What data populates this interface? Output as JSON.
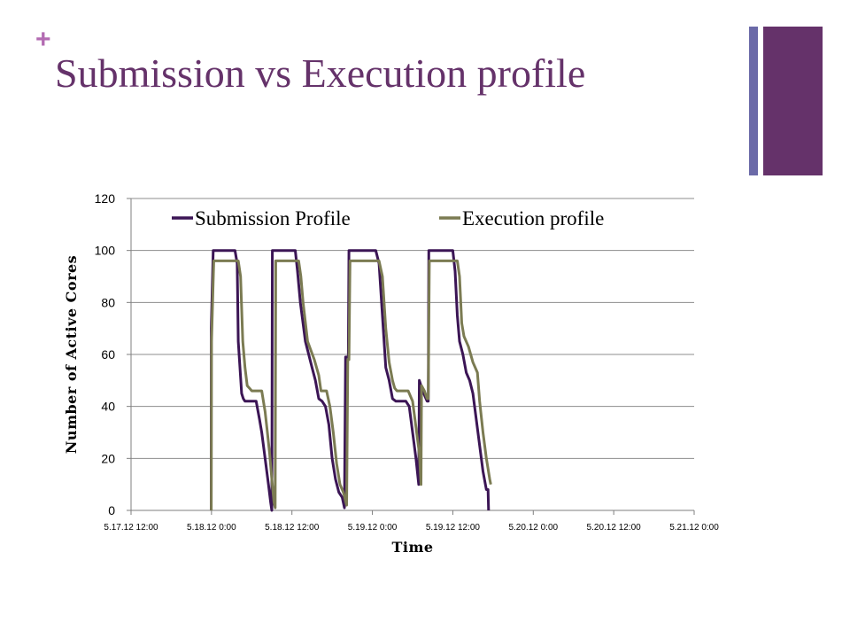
{
  "slide": {
    "bullet": "+",
    "title": "Submission vs Execution profile"
  },
  "colors": {
    "accent_purple": "#65326a",
    "accent_blue": "#6b6aa8",
    "plus": "#b36bb2"
  },
  "chart_data": {
    "type": "line",
    "xlabel": "Time",
    "ylabel": "Number of Active Cores",
    "ylim": [
      0,
      120
    ],
    "yticks": [
      "0",
      "20",
      "40",
      "60",
      "80",
      "100",
      "120"
    ],
    "xlim": [
      "2012-05-17T12:00",
      "2012-05-21T00:00"
    ],
    "xticks": [
      "5.17.12 12:00",
      "5.18.12 0:00",
      "5.18.12 12:00",
      "5.19.12 0:00",
      "5.19.12 12:00",
      "5.20.12 0:00",
      "5.20.12 12:00",
      "5.21.12 0:00"
    ],
    "grid": "horizontal",
    "legend_position": "top",
    "series": [
      {
        "name": "Submission Profile",
        "color": "#3b1555",
        "points": [
          [
            "2012-05-17T23:57",
            0
          ],
          [
            "2012-05-17T23:58",
            70
          ],
          [
            "2012-05-18T00:15",
            100
          ],
          [
            "2012-05-18T03:30",
            100
          ],
          [
            "2012-05-18T03:50",
            95
          ],
          [
            "2012-05-18T04:00",
            65
          ],
          [
            "2012-05-18T04:15",
            55
          ],
          [
            "2012-05-18T04:30",
            45
          ],
          [
            "2012-05-18T04:45",
            43
          ],
          [
            "2012-05-18T05:00",
            42
          ],
          [
            "2012-05-18T06:40",
            42
          ],
          [
            "2012-05-18T07:10",
            35
          ],
          [
            "2012-05-18T07:30",
            30
          ],
          [
            "2012-05-18T08:00",
            20
          ],
          [
            "2012-05-18T08:30",
            10
          ],
          [
            "2012-05-18T08:50",
            3
          ],
          [
            "2012-05-18T09:00",
            0
          ],
          [
            "2012-05-18T09:05",
            100
          ],
          [
            "2012-05-18T12:30",
            100
          ],
          [
            "2012-05-18T12:50",
            92
          ],
          [
            "2012-05-18T13:15",
            80
          ],
          [
            "2012-05-18T14:00",
            65
          ],
          [
            "2012-05-18T15:00",
            55
          ],
          [
            "2012-05-18T15:30",
            50
          ],
          [
            "2012-05-18T16:00",
            43
          ],
          [
            "2012-05-18T16:30",
            42
          ],
          [
            "2012-05-18T17:00",
            40
          ],
          [
            "2012-05-18T17:30",
            33
          ],
          [
            "2012-05-18T18:00",
            20
          ],
          [
            "2012-05-18T18:30",
            12
          ],
          [
            "2012-05-18T19:00",
            7
          ],
          [
            "2012-05-18T19:30",
            5
          ],
          [
            "2012-05-18T19:50",
            1
          ],
          [
            "2012-05-18T20:00",
            59
          ],
          [
            "2012-05-18T20:25",
            59
          ],
          [
            "2012-05-18T20:30",
            100
          ],
          [
            "2012-05-19T00:30",
            100
          ],
          [
            "2012-05-19T01:00",
            95
          ],
          [
            "2012-05-19T01:30",
            75
          ],
          [
            "2012-05-19T02:00",
            55
          ],
          [
            "2012-05-19T02:30",
            50
          ],
          [
            "2012-05-19T03:00",
            43
          ],
          [
            "2012-05-19T03:30",
            42
          ],
          [
            "2012-05-19T05:00",
            42
          ],
          [
            "2012-05-19T05:30",
            40
          ],
          [
            "2012-05-19T06:00",
            30
          ],
          [
            "2012-05-19T06:30",
            20
          ],
          [
            "2012-05-19T06:55",
            10
          ],
          [
            "2012-05-19T07:00",
            50
          ],
          [
            "2012-05-19T07:30",
            46
          ],
          [
            "2012-05-19T08:00",
            43
          ],
          [
            "2012-05-19T08:10",
            42
          ],
          [
            "2012-05-19T08:20",
            42
          ],
          [
            "2012-05-19T08:25",
            100
          ],
          [
            "2012-05-19T12:00",
            100
          ],
          [
            "2012-05-19T12:20",
            92
          ],
          [
            "2012-05-19T12:40",
            75
          ],
          [
            "2012-05-19T13:00",
            65
          ],
          [
            "2012-05-19T13:30",
            60
          ],
          [
            "2012-05-19T14:00",
            53
          ],
          [
            "2012-05-19T14:30",
            50
          ],
          [
            "2012-05-19T15:00",
            45
          ],
          [
            "2012-05-19T15:30",
            35
          ],
          [
            "2012-05-19T16:00",
            25
          ],
          [
            "2012-05-19T16:30",
            15
          ],
          [
            "2012-05-19T17:00",
            8
          ],
          [
            "2012-05-19T17:15",
            8
          ],
          [
            "2012-05-19T17:20",
            0
          ]
        ]
      },
      {
        "name": "Execution profile",
        "color": "#7b7b52",
        "points": [
          [
            "2012-05-17T23:58",
            0
          ],
          [
            "2012-05-18T00:00",
            65
          ],
          [
            "2012-05-18T00:20",
            96
          ],
          [
            "2012-05-18T04:00",
            96
          ],
          [
            "2012-05-18T04:20",
            90
          ],
          [
            "2012-05-18T04:40",
            65
          ],
          [
            "2012-05-18T05:00",
            55
          ],
          [
            "2012-05-18T05:20",
            48
          ],
          [
            "2012-05-18T05:40",
            47
          ],
          [
            "2012-05-18T06:00",
            46
          ],
          [
            "2012-05-18T07:30",
            46
          ],
          [
            "2012-05-18T08:00",
            38
          ],
          [
            "2012-05-18T08:20",
            30
          ],
          [
            "2012-05-18T08:40",
            22
          ],
          [
            "2012-05-18T09:00",
            12
          ],
          [
            "2012-05-18T09:20",
            3
          ],
          [
            "2012-05-18T09:30",
            1
          ],
          [
            "2012-05-18T09:35",
            96
          ],
          [
            "2012-05-18T13:00",
            96
          ],
          [
            "2012-05-18T13:20",
            90
          ],
          [
            "2012-05-18T13:40",
            80
          ],
          [
            "2012-05-18T14:20",
            65
          ],
          [
            "2012-05-18T15:20",
            58
          ],
          [
            "2012-05-18T16:00",
            52
          ],
          [
            "2012-05-18T16:20",
            46
          ],
          [
            "2012-05-18T17:10",
            46
          ],
          [
            "2012-05-18T17:40",
            40
          ],
          [
            "2012-05-18T18:10",
            30
          ],
          [
            "2012-05-18T18:40",
            18
          ],
          [
            "2012-05-18T19:10",
            10
          ],
          [
            "2012-05-18T19:40",
            7
          ],
          [
            "2012-05-18T20:10",
            2
          ],
          [
            "2012-05-18T20:20",
            58
          ],
          [
            "2012-05-18T20:30",
            58
          ],
          [
            "2012-05-18T20:40",
            96
          ],
          [
            "2012-05-19T01:00",
            96
          ],
          [
            "2012-05-19T01:30",
            90
          ],
          [
            "2012-05-19T02:00",
            70
          ],
          [
            "2012-05-19T02:30",
            57
          ],
          [
            "2012-05-19T03:00",
            50
          ],
          [
            "2012-05-19T03:20",
            47
          ],
          [
            "2012-05-19T03:40",
            46
          ],
          [
            "2012-05-19T05:20",
            46
          ],
          [
            "2012-05-19T06:00",
            42
          ],
          [
            "2012-05-19T06:30",
            32
          ],
          [
            "2012-05-19T07:00",
            22
          ],
          [
            "2012-05-19T07:15",
            10
          ],
          [
            "2012-05-19T07:20",
            48
          ],
          [
            "2012-05-19T07:45",
            46
          ],
          [
            "2012-05-19T08:10",
            43
          ],
          [
            "2012-05-19T08:20",
            43
          ],
          [
            "2012-05-19T08:30",
            96
          ],
          [
            "2012-05-19T12:40",
            96
          ],
          [
            "2012-05-19T13:00",
            90
          ],
          [
            "2012-05-19T13:20",
            72
          ],
          [
            "2012-05-19T13:40",
            67
          ],
          [
            "2012-05-19T14:20",
            63
          ],
          [
            "2012-05-19T15:00",
            57
          ],
          [
            "2012-05-19T15:40",
            53
          ],
          [
            "2012-05-19T16:00",
            42
          ],
          [
            "2012-05-19T16:30",
            30
          ],
          [
            "2012-05-19T17:00",
            20
          ],
          [
            "2012-05-19T17:30",
            12
          ],
          [
            "2012-05-19T17:40",
            10
          ]
        ]
      }
    ]
  }
}
